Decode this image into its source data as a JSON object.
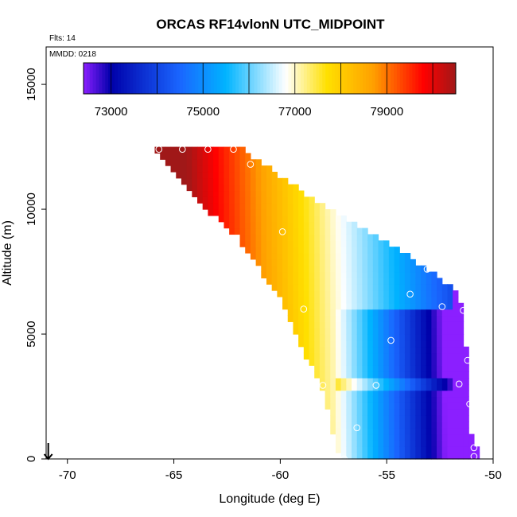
{
  "chart_data": {
    "type": "heatmap",
    "title": "ORCAS RF14vlonN UTC_MIDPOINT",
    "flights_label": "Flts: 14",
    "date_label": "MMDD: 0218",
    "xlabel": "Longitude (deg E)",
    "ylabel": "Altitude (m)",
    "xlim": [
      -71,
      -50
    ],
    "ylim": [
      0,
      16500
    ],
    "x_ticks": [
      -70,
      -65,
      -60,
      -55,
      -50
    ],
    "x_tick_labels": [
      "-70",
      "-65",
      "-60",
      "-55",
      "-50"
    ],
    "y_ticks": [
      0,
      5000,
      10000,
      15000
    ],
    "y_tick_labels": [
      "0",
      "5000",
      "10000",
      "15000"
    ],
    "colorbar": {
      "range": [
        72400,
        80500
      ],
      "ticks": [
        73000,
        75000,
        77000,
        79000
      ],
      "tick_labels": [
        "73000",
        "75000",
        "77000",
        "79000"
      ],
      "colors": [
        "#8b1fff",
        "#0000aa",
        "#1a66ff",
        "#00b4ff",
        "#ffffff",
        "#ffe000",
        "#ffa000",
        "#ff0000",
        "#a01818"
      ],
      "color_stops": [
        72400,
        73000,
        74500,
        75500,
        76800,
        77700,
        78700,
        79800,
        80500
      ]
    },
    "cell_width_deg": 0.25,
    "cell_height_m": 250,
    "values_note": "",
    "profile": [
      {
        "lon": -65.9,
        "top": 12500
      },
      {
        "lon": -64.0,
        "top": 12500
      },
      {
        "lon": -62.0,
        "top": 12400
      },
      {
        "lon": -60.0,
        "top": 11200
      },
      {
        "lon": -58.0,
        "top": 10000
      },
      {
        "lon": -56.0,
        "top": 9000
      },
      {
        "lon": -54.0,
        "top": 8000
      },
      {
        "lon": -53.0,
        "top": 7400
      },
      {
        "lon": -52.0,
        "top": 6800
      },
      {
        "lon": -51.4,
        "top": 6000
      },
      {
        "lon": -51.0,
        "top": 500
      }
    ],
    "bottom_profile": [
      {
        "lon": -65.9,
        "bottom": 12400
      },
      {
        "lon": -64.0,
        "bottom": 10500
      },
      {
        "lon": -62.0,
        "bottom": 9000
      },
      {
        "lon": -60.0,
        "bottom": 6500
      },
      {
        "lon": -58.0,
        "bottom": 2800
      },
      {
        "lon": -57.2,
        "bottom": 0
      },
      {
        "lon": -51.0,
        "bottom": 0
      }
    ],
    "points": [
      {
        "lon": -65.7,
        "alt": 12400
      },
      {
        "lon": -64.6,
        "alt": 12400
      },
      {
        "lon": -63.4,
        "alt": 12400
      },
      {
        "lon": -62.2,
        "alt": 12400
      },
      {
        "lon": -61.4,
        "alt": 11800
      },
      {
        "lon": -59.9,
        "alt": 9100
      },
      {
        "lon": -58.9,
        "alt": 6000
      },
      {
        "lon": -58.0,
        "alt": 2950
      },
      {
        "lon": -56.4,
        "alt": 1250
      },
      {
        "lon": -57.0,
        "alt": 0
      },
      {
        "lon": -55.5,
        "alt": 2950
      },
      {
        "lon": -54.8,
        "alt": 4750
      },
      {
        "lon": -53.9,
        "alt": 6600
      },
      {
        "lon": -53.1,
        "alt": 7600
      },
      {
        "lon": -52.4,
        "alt": 6100
      },
      {
        "lon": -51.6,
        "alt": 3000
      },
      {
        "lon": -51.1,
        "alt": 2200
      },
      {
        "lon": -51.2,
        "alt": 3950
      },
      {
        "lon": -51.4,
        "alt": 5950
      },
      {
        "lon": -50.9,
        "alt": 450
      },
      {
        "lon": -50.9,
        "alt": 100
      }
    ],
    "arrow_lon": -70.9
  }
}
